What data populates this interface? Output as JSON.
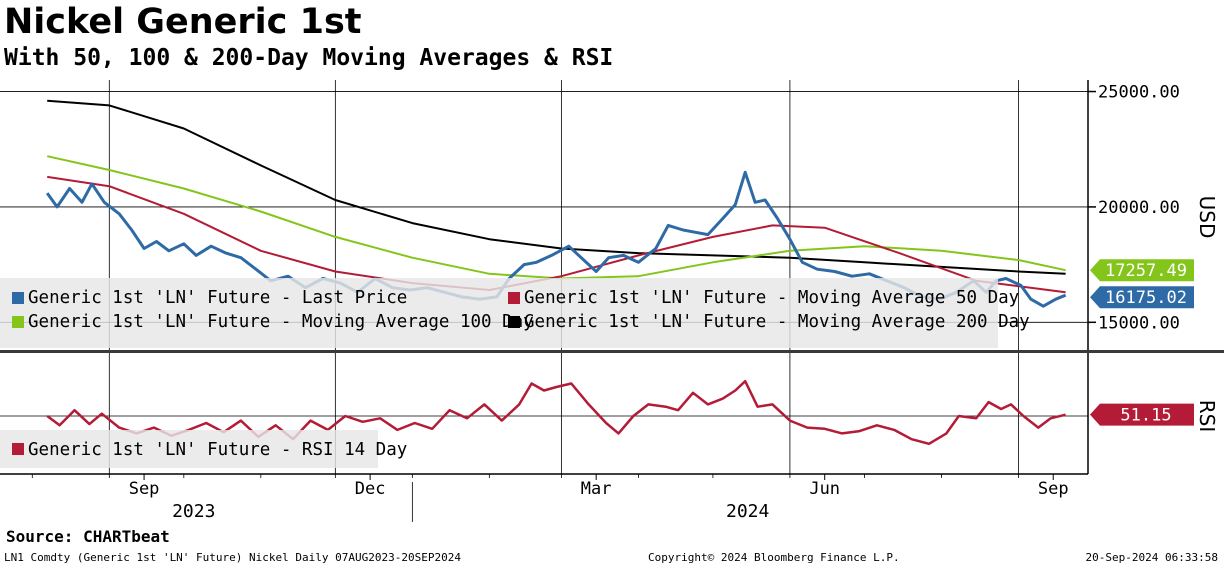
{
  "header": {
    "title": "Nickel Generic 1st",
    "subtitle": "With 50, 100 & 200-Day Moving Averages & RSI"
  },
  "footer": {
    "source": "Source: CHARTbeat",
    "ticker": "LN1 Comdty (Generic 1st 'LN' Future) Nickel  Daily 07AUG2023-20SEP2024",
    "copyright": "Copyright© 2024 Bloomberg Finance L.P.",
    "timestamp": "20-Sep-2024 06:33:58"
  },
  "colors": {
    "last_price": "#2e6aa6",
    "ma50": "#b31b36",
    "ma100": "#84c51c",
    "ma200": "#000000",
    "rsi": "#b31b36"
  },
  "chart_data": [
    {
      "type": "line",
      "ylabel": "USD",
      "ylim": [
        13800,
        25500
      ],
      "yticks": [
        "25000.00",
        "20000.00",
        "15000.00"
      ],
      "x_ticks": [
        "Sep",
        "Dec",
        "Mar",
        "Jun",
        "Sep"
      ],
      "x_years": [
        "2023",
        "2024"
      ],
      "legend_placement": "bottom-left",
      "series": [
        {
          "name": "Generic 1st 'LN' Future - Last Price",
          "color_key": "last_price",
          "last_value": "16175.02",
          "points": [
            [
              "2023-08-07",
              20600
            ],
            [
              "2023-08-11",
              20000
            ],
            [
              "2023-08-16",
              20800
            ],
            [
              "2023-08-21",
              20200
            ],
            [
              "2023-08-25",
              21000
            ],
            [
              "2023-08-30",
              20200
            ],
            [
              "2023-09-05",
              19700
            ],
            [
              "2023-09-10",
              19000
            ],
            [
              "2023-09-15",
              18200
            ],
            [
              "2023-09-20",
              18500
            ],
            [
              "2023-09-25",
              18100
            ],
            [
              "2023-10-01",
              18400
            ],
            [
              "2023-10-06",
              17900
            ],
            [
              "2023-10-12",
              18300
            ],
            [
              "2023-10-18",
              18000
            ],
            [
              "2023-10-24",
              17800
            ],
            [
              "2023-10-30",
              17300
            ],
            [
              "2023-11-05",
              16800
            ],
            [
              "2023-11-12",
              17000
            ],
            [
              "2023-11-19",
              16500
            ],
            [
              "2023-11-26",
              16900
            ],
            [
              "2023-12-03",
              16700
            ],
            [
              "2023-12-10",
              16300
            ],
            [
              "2023-12-17",
              16900
            ],
            [
              "2023-12-24",
              16500
            ],
            [
              "2023-12-31",
              16400
            ],
            [
              "2024-01-07",
              16500
            ],
            [
              "2024-01-14",
              16300
            ],
            [
              "2024-01-21",
              16100
            ],
            [
              "2024-01-28",
              16000
            ],
            [
              "2024-02-04",
              16100
            ],
            [
              "2024-02-09",
              16900
            ],
            [
              "2024-02-15",
              17500
            ],
            [
              "2024-02-20",
              17600
            ],
            [
              "2024-02-26",
              17900
            ],
            [
              "2024-03-04",
              18300
            ],
            [
              "2024-03-10",
              17700
            ],
            [
              "2024-03-15",
              17200
            ],
            [
              "2024-03-20",
              17800
            ],
            [
              "2024-03-26",
              17900
            ],
            [
              "2024-04-01",
              17600
            ],
            [
              "2024-04-08",
              18200
            ],
            [
              "2024-04-13",
              19200
            ],
            [
              "2024-04-19",
              19000
            ],
            [
              "2024-04-24",
              18900
            ],
            [
              "2024-04-29",
              18800
            ],
            [
              "2024-05-05",
              19500
            ],
            [
              "2024-05-10",
              20100
            ],
            [
              "2024-05-14",
              21500
            ],
            [
              "2024-05-18",
              20200
            ],
            [
              "2024-05-22",
              20300
            ],
            [
              "2024-05-27",
              19500
            ],
            [
              "2024-06-01",
              18600
            ],
            [
              "2024-06-06",
              17600
            ],
            [
              "2024-06-12",
              17300
            ],
            [
              "2024-06-19",
              17200
            ],
            [
              "2024-06-26",
              17000
            ],
            [
              "2024-07-03",
              17100
            ],
            [
              "2024-07-10",
              16800
            ],
            [
              "2024-07-17",
              16500
            ],
            [
              "2024-07-24",
              16100
            ],
            [
              "2024-07-31",
              16000
            ],
            [
              "2024-08-07",
              16300
            ],
            [
              "2024-08-14",
              16800
            ],
            [
              "2024-08-19",
              16300
            ],
            [
              "2024-08-23",
              16800
            ],
            [
              "2024-08-27",
              16900
            ],
            [
              "2024-09-02",
              16600
            ],
            [
              "2024-09-06",
              16000
            ],
            [
              "2024-09-11",
              15700
            ],
            [
              "2024-09-16",
              16000
            ],
            [
              "2024-09-20",
              16175
            ]
          ]
        },
        {
          "name": "Generic 1st 'LN' Future - Moving Average 50 Day",
          "color_key": "ma50",
          "last_value": "",
          "points": [
            [
              "2023-08-07",
              21300
            ],
            [
              "2023-09-01",
              20900
            ],
            [
              "2023-10-01",
              19700
            ],
            [
              "2023-11-01",
              18100
            ],
            [
              "2023-12-01",
              17200
            ],
            [
              "2024-01-01",
              16700
            ],
            [
              "2024-02-01",
              16400
            ],
            [
              "2024-03-01",
              17000
            ],
            [
              "2024-04-01",
              17900
            ],
            [
              "2024-05-01",
              18700
            ],
            [
              "2024-05-25",
              19200
            ],
            [
              "2024-06-15",
              19100
            ],
            [
              "2024-07-15",
              18000
            ],
            [
              "2024-08-15",
              16800
            ],
            [
              "2024-09-20",
              16300
            ]
          ]
        },
        {
          "name": "Generic 1st 'LN' Future - Moving Average 100 Day",
          "color_key": "ma100",
          "last_value": "17257.49",
          "points": [
            [
              "2023-08-07",
              22200
            ],
            [
              "2023-09-01",
              21600
            ],
            [
              "2023-10-01",
              20800
            ],
            [
              "2023-11-01",
              19800
            ],
            [
              "2023-12-01",
              18700
            ],
            [
              "2024-01-01",
              17800
            ],
            [
              "2024-02-01",
              17100
            ],
            [
              "2024-03-01",
              16900
            ],
            [
              "2024-04-01",
              17000
            ],
            [
              "2024-05-01",
              17600
            ],
            [
              "2024-06-01",
              18100
            ],
            [
              "2024-07-01",
              18300
            ],
            [
              "2024-08-01",
              18100
            ],
            [
              "2024-09-01",
              17700
            ],
            [
              "2024-09-20",
              17257
            ]
          ]
        },
        {
          "name": "Generic 1st 'LN' Future - Moving Average 200 Day",
          "color_key": "ma200",
          "last_value": "",
          "points": [
            [
              "2023-08-07",
              24600
            ],
            [
              "2023-09-01",
              24400
            ],
            [
              "2023-10-01",
              23400
            ],
            [
              "2023-11-01",
              21800
            ],
            [
              "2023-12-01",
              20300
            ],
            [
              "2024-01-01",
              19300
            ],
            [
              "2024-02-01",
              18600
            ],
            [
              "2024-03-01",
              18200
            ],
            [
              "2024-04-01",
              18000
            ],
            [
              "2024-05-01",
              17900
            ],
            [
              "2024-06-01",
              17800
            ],
            [
              "2024-07-01",
              17600
            ],
            [
              "2024-08-01",
              17400
            ],
            [
              "2024-09-01",
              17200
            ],
            [
              "2024-09-20",
              17100
            ]
          ]
        }
      ]
    },
    {
      "type": "line",
      "ylabel": "RSI",
      "ylim": [
        0,
        100
      ],
      "legend_placement": "bottom-left",
      "series": [
        {
          "name": "Generic 1st 'LN' Future - RSI 14 Day",
          "color_key": "rsi",
          "last_value": "51.15",
          "points": [
            [
              "2023-08-07",
              50
            ],
            [
              "2023-08-12",
              42
            ],
            [
              "2023-08-18",
              55
            ],
            [
              "2023-08-24",
              43
            ],
            [
              "2023-08-29",
              52
            ],
            [
              "2023-09-05",
              40
            ],
            [
              "2023-09-12",
              35
            ],
            [
              "2023-09-19",
              40
            ],
            [
              "2023-09-26",
              33
            ],
            [
              "2023-10-03",
              38
            ],
            [
              "2023-10-10",
              44
            ],
            [
              "2023-10-17",
              36
            ],
            [
              "2023-10-24",
              46
            ],
            [
              "2023-10-31",
              32
            ],
            [
              "2023-11-07",
              42
            ],
            [
              "2023-11-14",
              30
            ],
            [
              "2023-11-21",
              46
            ],
            [
              "2023-11-28",
              38
            ],
            [
              "2023-12-05",
              50
            ],
            [
              "2023-12-12",
              45
            ],
            [
              "2023-12-19",
              48
            ],
            [
              "2023-12-26",
              38
            ],
            [
              "2024-01-02",
              44
            ],
            [
              "2024-01-09",
              39
            ],
            [
              "2024-01-16",
              55
            ],
            [
              "2024-01-23",
              48
            ],
            [
              "2024-01-30",
              60
            ],
            [
              "2024-02-06",
              46
            ],
            [
              "2024-02-13",
              60
            ],
            [
              "2024-02-18",
              78
            ],
            [
              "2024-02-23",
              72
            ],
            [
              "2024-02-28",
              75
            ],
            [
              "2024-03-05",
              78
            ],
            [
              "2024-03-12",
              60
            ],
            [
              "2024-03-19",
              44
            ],
            [
              "2024-03-24",
              35
            ],
            [
              "2024-03-30",
              50
            ],
            [
              "2024-04-05",
              60
            ],
            [
              "2024-04-12",
              58
            ],
            [
              "2024-04-17",
              55
            ],
            [
              "2024-04-23",
              70
            ],
            [
              "2024-04-29",
              60
            ],
            [
              "2024-05-05",
              65
            ],
            [
              "2024-05-10",
              72
            ],
            [
              "2024-05-14",
              80
            ],
            [
              "2024-05-19",
              58
            ],
            [
              "2024-05-25",
              60
            ],
            [
              "2024-06-01",
              46
            ],
            [
              "2024-06-08",
              40
            ],
            [
              "2024-06-15",
              39
            ],
            [
              "2024-06-22",
              35
            ],
            [
              "2024-06-29",
              37
            ],
            [
              "2024-07-06",
              42
            ],
            [
              "2024-07-13",
              38
            ],
            [
              "2024-07-20",
              30
            ],
            [
              "2024-07-27",
              26
            ],
            [
              "2024-08-03",
              35
            ],
            [
              "2024-08-08",
              50
            ],
            [
              "2024-08-15",
              48
            ],
            [
              "2024-08-20",
              62
            ],
            [
              "2024-08-25",
              56
            ],
            [
              "2024-08-29",
              60
            ],
            [
              "2024-09-03",
              50
            ],
            [
              "2024-09-09",
              40
            ],
            [
              "2024-09-14",
              48
            ],
            [
              "2024-09-20",
              51.15
            ]
          ]
        }
      ]
    }
  ]
}
